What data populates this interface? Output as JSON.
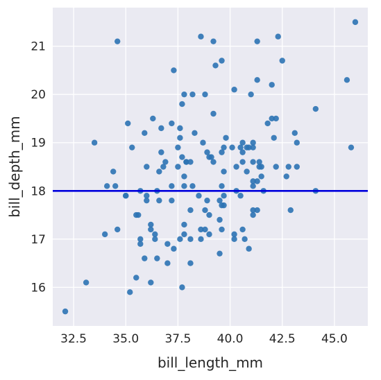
{
  "chart_data": {
    "type": "scatter",
    "title": "",
    "xlabel": "bill_length_mm",
    "ylabel": "bill_depth_mm",
    "xlim": [
      31.5,
      46.6
    ],
    "ylim": [
      15.2,
      21.8
    ],
    "xticks": [
      32.5,
      35.0,
      37.5,
      40.0,
      42.5,
      45.0
    ],
    "xtick_labels": [
      "32.5",
      "35.0",
      "37.5",
      "40.0",
      "42.5",
      "45.0"
    ],
    "yticks": [
      16,
      17,
      18,
      19,
      20,
      21
    ],
    "ytick_labels": [
      "16",
      "17",
      "18",
      "19",
      "20",
      "21"
    ],
    "grid": true,
    "background": "#eaeaf2",
    "grid_color": "#ffffff",
    "point_color": "#2c73b4",
    "hline": {
      "y": 18.0,
      "color": "#0000dd"
    },
    "points": [
      [
        32.1,
        15.5
      ],
      [
        33.1,
        16.1
      ],
      [
        33.5,
        19.0
      ],
      [
        34.0,
        17.1
      ],
      [
        34.1,
        18.1
      ],
      [
        34.4,
        18.4
      ],
      [
        34.5,
        18.1
      ],
      [
        34.6,
        17.2
      ],
      [
        34.6,
        21.1
      ],
      [
        35.0,
        17.9
      ],
      [
        35.0,
        17.9
      ],
      [
        35.1,
        19.4
      ],
      [
        35.2,
        15.9
      ],
      [
        35.3,
        18.9
      ],
      [
        35.5,
        16.2
      ],
      [
        35.5,
        17.5
      ],
      [
        35.6,
        17.5
      ],
      [
        35.7,
        16.9
      ],
      [
        35.7,
        17.0
      ],
      [
        35.7,
        18.0
      ],
      [
        35.9,
        16.6
      ],
      [
        35.9,
        19.2
      ],
      [
        36.0,
        17.8
      ],
      [
        36.0,
        17.9
      ],
      [
        36.0,
        18.5
      ],
      [
        36.2,
        16.1
      ],
      [
        36.2,
        17.2
      ],
      [
        36.2,
        17.3
      ],
      [
        36.3,
        19.5
      ],
      [
        36.4,
        17.0
      ],
      [
        36.4,
        17.1
      ],
      [
        36.5,
        16.6
      ],
      [
        36.5,
        18.0
      ],
      [
        36.6,
        17.8
      ],
      [
        36.6,
        18.4
      ],
      [
        36.7,
        18.8
      ],
      [
        36.7,
        19.3
      ],
      [
        36.8,
        18.5
      ],
      [
        36.9,
        18.6
      ],
      [
        37.0,
        16.5
      ],
      [
        37.0,
        16.9
      ],
      [
        37.2,
        17.8
      ],
      [
        37.2,
        18.1
      ],
      [
        37.2,
        19.4
      ],
      [
        37.3,
        16.8
      ],
      [
        37.3,
        20.5
      ],
      [
        37.5,
        18.5
      ],
      [
        37.5,
        18.9
      ],
      [
        37.6,
        17.0
      ],
      [
        37.6,
        19.1
      ],
      [
        37.6,
        19.3
      ],
      [
        37.7,
        16.0
      ],
      [
        37.7,
        18.7
      ],
      [
        37.7,
        19.8
      ],
      [
        37.8,
        17.1
      ],
      [
        37.8,
        17.3
      ],
      [
        37.8,
        18.1
      ],
      [
        37.8,
        18.3
      ],
      [
        37.8,
        20.0
      ],
      [
        37.9,
        18.6
      ],
      [
        37.9,
        18.6
      ],
      [
        38.1,
        16.5
      ],
      [
        38.1,
        17.0
      ],
      [
        38.1,
        17.6
      ],
      [
        38.1,
        18.6
      ],
      [
        38.2,
        18.1
      ],
      [
        38.2,
        20.0
      ],
      [
        38.3,
        19.2
      ],
      [
        38.5,
        17.9
      ],
      [
        38.6,
        17.0
      ],
      [
        38.6,
        17.2
      ],
      [
        38.6,
        21.2
      ],
      [
        38.7,
        19.0
      ],
      [
        38.8,
        17.2
      ],
      [
        38.8,
        17.6
      ],
      [
        38.8,
        20.0
      ],
      [
        38.9,
        17.8
      ],
      [
        38.9,
        18.8
      ],
      [
        39.0,
        17.1
      ],
      [
        39.0,
        17.5
      ],
      [
        39.0,
        18.7
      ],
      [
        39.1,
        18.7
      ],
      [
        39.2,
        18.6
      ],
      [
        39.2,
        19.6
      ],
      [
        39.2,
        21.1
      ],
      [
        39.3,
        20.6
      ],
      [
        39.5,
        16.7
      ],
      [
        39.5,
        17.4
      ],
      [
        39.5,
        17.8
      ],
      [
        39.6,
        17.2
      ],
      [
        39.6,
        17.7
      ],
      [
        39.6,
        18.1
      ],
      [
        39.6,
        18.8
      ],
      [
        39.6,
        20.7
      ],
      [
        39.7,
        17.7
      ],
      [
        39.7,
        17.9
      ],
      [
        39.7,
        18.4
      ],
      [
        39.7,
        18.9
      ],
      [
        39.8,
        19.1
      ],
      [
        40.1,
        18.9
      ],
      [
        40.2,
        17.0
      ],
      [
        40.2,
        17.1
      ],
      [
        40.2,
        20.1
      ],
      [
        40.3,
        18.0
      ],
      [
        40.3,
        18.5
      ],
      [
        40.5,
        17.9
      ],
      [
        40.5,
        18.9
      ],
      [
        40.6,
        17.2
      ],
      [
        40.6,
        18.6
      ],
      [
        40.6,
        18.8
      ],
      [
        40.6,
        19.0
      ],
      [
        40.7,
        17.0
      ],
      [
        40.8,
        18.4
      ],
      [
        40.8,
        18.9
      ],
      [
        40.9,
        16.8
      ],
      [
        40.9,
        18.9
      ],
      [
        41.0,
        20.0
      ],
      [
        41.1,
        17.5
      ],
      [
        41.1,
        17.6
      ],
      [
        41.1,
        18.1
      ],
      [
        41.1,
        18.2
      ],
      [
        41.1,
        18.6
      ],
      [
        41.1,
        18.9
      ],
      [
        41.1,
        19.0
      ],
      [
        41.3,
        17.6
      ],
      [
        41.3,
        18.2
      ],
      [
        41.3,
        20.3
      ],
      [
        41.3,
        21.1
      ],
      [
        41.4,
        18.5
      ],
      [
        41.4,
        18.6
      ],
      [
        41.5,
        18.3
      ],
      [
        41.5,
        18.5
      ],
      [
        41.6,
        18.0
      ],
      [
        41.8,
        19.4
      ],
      [
        42.0,
        19.5
      ],
      [
        42.0,
        20.2
      ],
      [
        42.1,
        19.1
      ],
      [
        42.2,
        18.5
      ],
      [
        42.2,
        19.5
      ],
      [
        42.3,
        21.2
      ],
      [
        42.5,
        20.7
      ],
      [
        42.7,
        18.3
      ],
      [
        42.8,
        18.5
      ],
      [
        42.9,
        17.6
      ],
      [
        43.1,
        19.2
      ],
      [
        43.2,
        18.5
      ],
      [
        43.2,
        19.0
      ],
      [
        44.1,
        18.0
      ],
      [
        44.1,
        19.7
      ],
      [
        45.6,
        20.3
      ],
      [
        45.8,
        18.9
      ],
      [
        46.0,
        21.5
      ]
    ]
  }
}
